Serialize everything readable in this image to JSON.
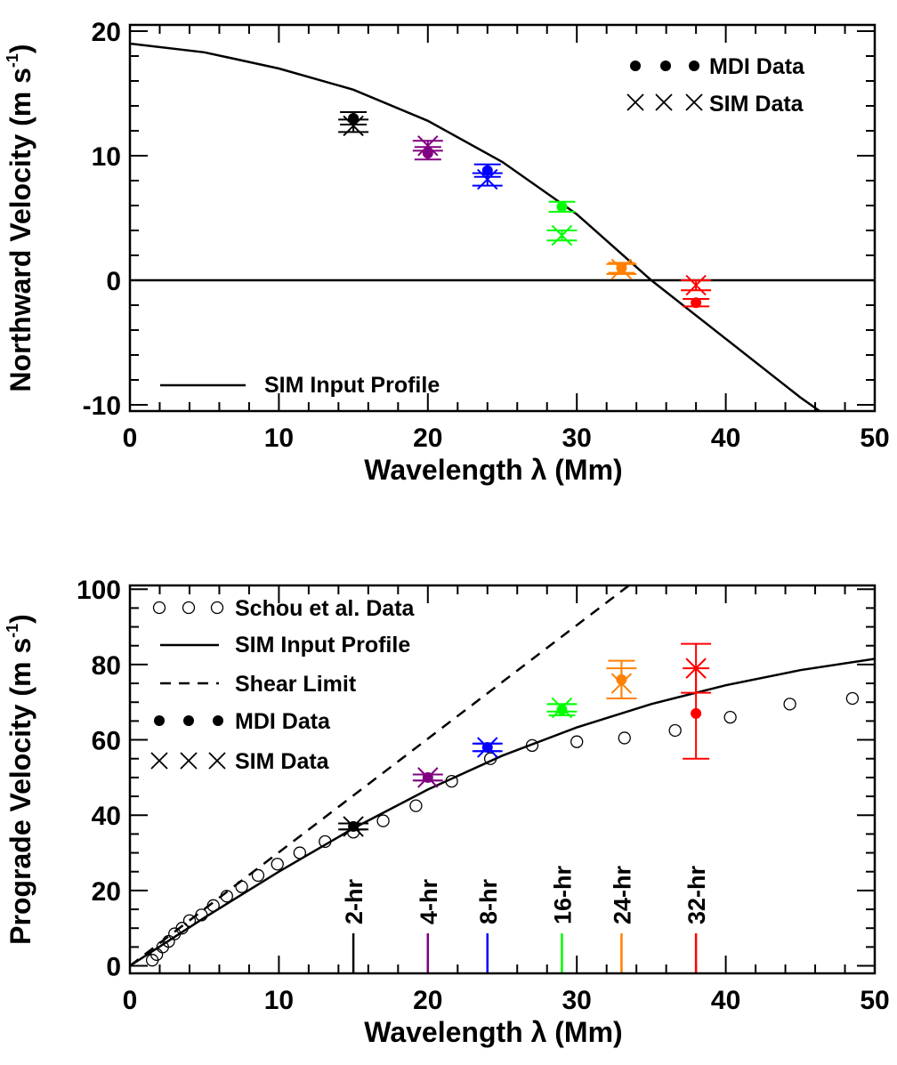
{
  "chart_data": [
    {
      "type": "scatter",
      "xlabel": "Wavelength λ (Mm)",
      "ylabel": "Northward Velocity (m s",
      "ylabel_sup": "-1",
      "ylabel_close": ")",
      "xlim": [
        0,
        50
      ],
      "ylim": [
        -10.5,
        20.5
      ],
      "xticks": [
        0,
        10,
        20,
        30,
        40,
        50
      ],
      "yticks": [
        -10,
        0,
        10,
        20
      ],
      "legend": {
        "mdi": "MDI Data",
        "sim": "SIM Data",
        "profile": "SIM Input Profile"
      },
      "mdi_points": [
        {
          "x": 15,
          "y": 13.0,
          "err": 0.5,
          "color": "#000000"
        },
        {
          "x": 20,
          "y": 10.2,
          "err": 0.5,
          "color": "#800080"
        },
        {
          "x": 24,
          "y": 8.8,
          "err": 0.5,
          "color": "#0000ff"
        },
        {
          "x": 29,
          "y": 5.9,
          "err": 0.4,
          "color": "#00ff00"
        },
        {
          "x": 33,
          "y": 1.0,
          "err": 0.4,
          "color": "#ff8000"
        },
        {
          "x": 38,
          "y": -1.8,
          "err": 0.3,
          "color": "#ff0000"
        }
      ],
      "sim_points": [
        {
          "x": 15,
          "y": 12.4,
          "err": 0.5,
          "color": "#000000"
        },
        {
          "x": 20,
          "y": 10.8,
          "err": 0.4,
          "color": "#800080"
        },
        {
          "x": 24,
          "y": 8.1,
          "err": 0.5,
          "color": "#0000ff"
        },
        {
          "x": 29,
          "y": 3.6,
          "err": 0.4,
          "color": "#00ff00"
        },
        {
          "x": 33,
          "y": 0.9,
          "err": 0.4,
          "color": "#ff8000"
        },
        {
          "x": 38,
          "y": -0.4,
          "err": 0.4,
          "color": "#ff0000"
        }
      ],
      "profile": {
        "x": [
          0,
          5,
          10,
          15,
          20,
          25,
          30,
          35,
          40,
          45,
          46.3
        ],
        "y": [
          19.0,
          18.3,
          17.0,
          15.3,
          12.8,
          9.5,
          5.3,
          0.0,
          -4.7,
          -9.4,
          -10.5
        ]
      },
      "zero_line": 0
    },
    {
      "type": "scatter",
      "xlabel": "Wavelength λ (Mm)",
      "ylabel": "Prograde Velocity (m s",
      "ylabel_sup": "-1",
      "ylabel_close": ")",
      "xlim": [
        0,
        50
      ],
      "ylim": [
        -2,
        101
      ],
      "xticks": [
        0,
        10,
        20,
        30,
        40,
        50
      ],
      "yticks": [
        0,
        20,
        40,
        60,
        80,
        100
      ],
      "legend": {
        "schou": "Schou et al. Data",
        "profile": "SIM Input Profile",
        "shear": "Shear Limit",
        "mdi": "MDI Data",
        "sim": "SIM Data"
      },
      "schou": {
        "x": [
          1.5,
          1.8,
          2.2,
          2.6,
          3.0,
          3.5,
          4.0,
          4.8,
          5.6,
          6.5,
          7.5,
          8.6,
          9.9,
          11.4,
          13.1,
          15.0,
          17.0,
          19.2,
          21.6,
          24.2,
          27.0,
          30.0,
          33.2,
          36.6,
          40.3,
          44.3,
          48.5
        ],
        "y": [
          1.5,
          3,
          5,
          6.5,
          8.5,
          10,
          12,
          13.5,
          16,
          18.5,
          21,
          24,
          27,
          30,
          33,
          35.5,
          38.5,
          42.5,
          49,
          55,
          58.5,
          59.5,
          60.5,
          62.5,
          66,
          69.5,
          71
        ]
      },
      "profile": {
        "x": [
          0,
          5,
          10,
          15,
          20,
          25,
          30,
          35,
          40,
          45,
          50
        ],
        "y": [
          0,
          12.8,
          25.0,
          36.5,
          46.8,
          55.8,
          63.3,
          69.5,
          74.5,
          78.5,
          81.5
        ]
      },
      "shear": {
        "x": [
          0,
          33.5
        ],
        "y": [
          0,
          101
        ]
      },
      "mdi_points": [
        {
          "x": 15,
          "y": 37.0,
          "err": 0.8,
          "color": "#000000"
        },
        {
          "x": 20,
          "y": 50.0,
          "err": 0.8,
          "color": "#800080"
        },
        {
          "x": 24,
          "y": 58.0,
          "err": 1.0,
          "color": "#0000ff"
        },
        {
          "x": 29,
          "y": 68.0,
          "err": 1.5,
          "color": "#00ff00"
        },
        {
          "x": 33,
          "y": 76.0,
          "err": 5.0,
          "color": "#ff8000"
        },
        {
          "x": 38,
          "y": 67.0,
          "err": 12.0,
          "color": "#ff0000"
        }
      ],
      "sim_points": [
        {
          "x": 15,
          "y": 37.0,
          "err": 0.8,
          "color": "#000000"
        },
        {
          "x": 20,
          "y": 50.0,
          "err": 0.8,
          "color": "#800080"
        },
        {
          "x": 24,
          "y": 58.0,
          "err": 1.0,
          "color": "#0000ff"
        },
        {
          "x": 29,
          "y": 68.5,
          "err": 1.0,
          "color": "#00ff00"
        },
        {
          "x": 33,
          "y": 75.0,
          "err": 4.0,
          "color": "#ff8000"
        },
        {
          "x": 38,
          "y": 79.0,
          "err": 6.5,
          "color": "#ff0000"
        }
      ],
      "markers": [
        {
          "x": 15,
          "label": "2-hr",
          "color": "#000000"
        },
        {
          "x": 20,
          "label": "4-hr",
          "color": "#800080"
        },
        {
          "x": 24,
          "label": "8-hr",
          "color": "#0000ff"
        },
        {
          "x": 29,
          "label": "16-hr",
          "color": "#00ff00"
        },
        {
          "x": 33,
          "label": "24-hr",
          "color": "#ff8000"
        },
        {
          "x": 38,
          "label": "32-hr",
          "color": "#ff0000"
        }
      ]
    }
  ]
}
